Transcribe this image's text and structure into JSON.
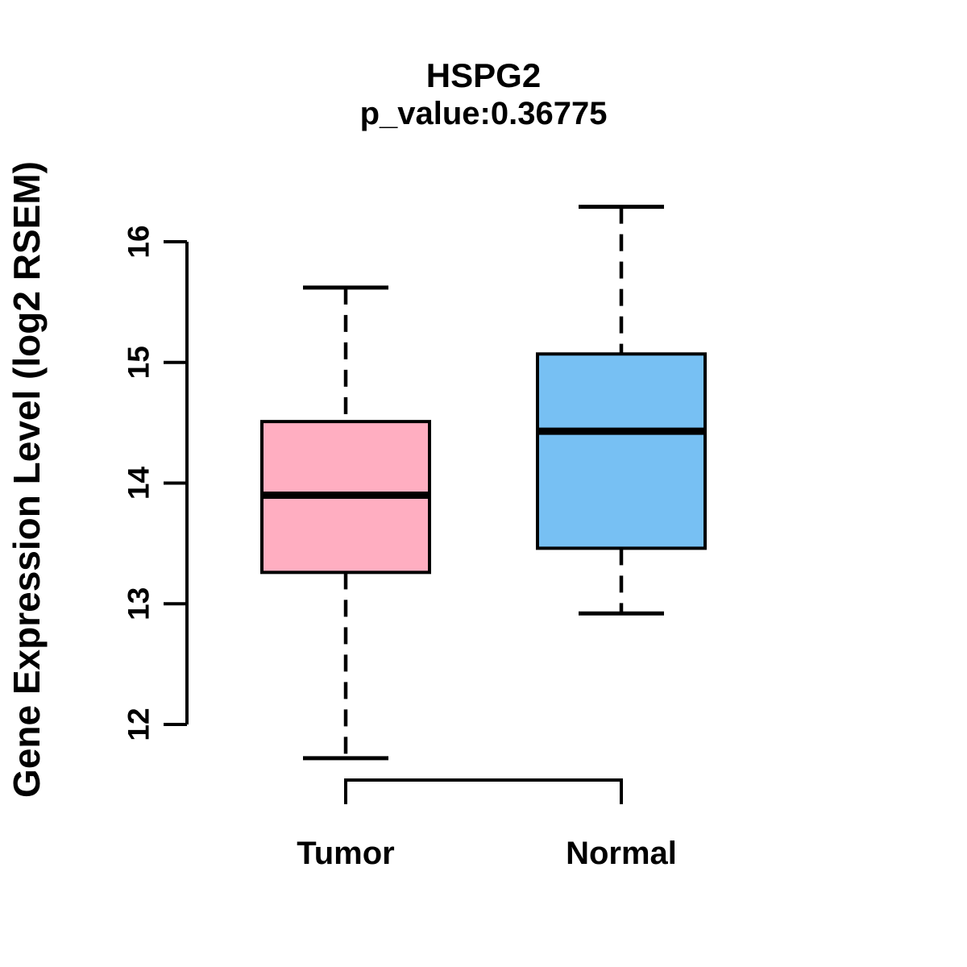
{
  "chart_data": {
    "type": "boxplot",
    "title": "HSPG2",
    "subtitle": "p_value:0.36775",
    "gene": "HSPG2",
    "p_value": 0.36775,
    "ylabel": "Gene Expression Level (log2 RSEM)",
    "xlabel": "",
    "y_ticks": [
      "12",
      "13",
      "14",
      "15",
      "16"
    ],
    "y_tick_values": [
      12,
      13,
      14,
      15,
      16
    ],
    "y_range_shown": [
      11.5,
      16.5
    ],
    "grid": false,
    "legend_position": "none",
    "whisker_style": "dashed",
    "colors": {
      "line": "#000000",
      "text": "#000000",
      "background": "#ffffff"
    },
    "groups": [
      {
        "label": "Tumor",
        "fill": "#FFAEC1",
        "stats": {
          "whisker_low": 11.72,
          "q1": 13.26,
          "median": 13.9,
          "q3": 14.51,
          "whisker_high": 15.62
        }
      },
      {
        "label": "Normal",
        "fill": "#77C0F3",
        "stats": {
          "whisker_low": 12.92,
          "q1": 13.46,
          "median": 14.43,
          "q3": 15.07,
          "whisker_high": 16.29
        }
      }
    ]
  }
}
